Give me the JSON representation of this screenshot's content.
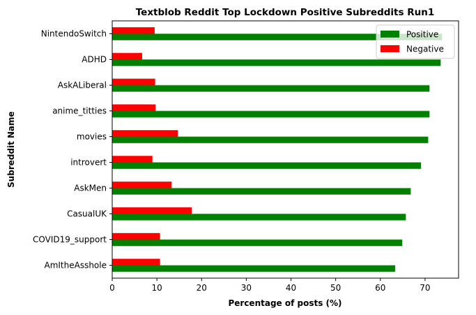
{
  "chart_data": {
    "type": "bar",
    "orientation": "horizontal",
    "title": "Textblob Reddit Top Lockdown Positive Subreddits Run1",
    "xlabel": "Percentage of posts (%)",
    "ylabel": "Subreddit Name",
    "xlim": [
      0,
      77.5
    ],
    "xticks": [
      "0",
      "10",
      "20",
      "30",
      "40",
      "50",
      "60",
      "70"
    ],
    "categories": [
      "AmItheAsshole",
      "COVID19_support",
      "CasualUK",
      "AskMen",
      "introvert",
      "movies",
      "anime_titties",
      "AskALiberal",
      "ADHD",
      "NintendoSwitch"
    ],
    "series": [
      {
        "name": "Positive",
        "color": "#008000",
        "values": [
          63.3,
          64.9,
          65.7,
          66.8,
          69.1,
          70.7,
          71.0,
          71.0,
          73.5,
          73.8
        ]
      },
      {
        "name": "Negative",
        "color": "#ff0000",
        "values": [
          10.7,
          10.7,
          17.8,
          13.3,
          9.0,
          14.7,
          9.7,
          9.6,
          6.7,
          9.5
        ]
      }
    ],
    "legend_position": "top-right",
    "grid": false
  }
}
